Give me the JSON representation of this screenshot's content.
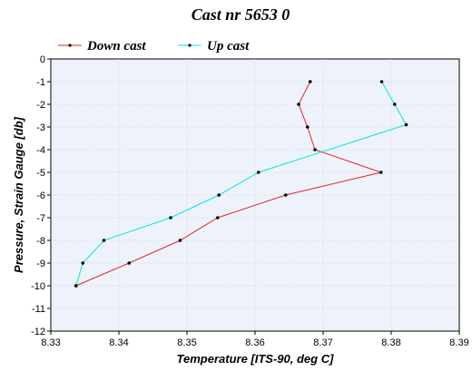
{
  "chart_data": {
    "type": "line",
    "title": "Cast nr 5653 0",
    "xlabel": "Temperature [ITS-90, deg C]",
    "ylabel": "Pressure, Strain Gauge [db]",
    "xlim": [
      8.33,
      8.39
    ],
    "ylim": [
      -12,
      0
    ],
    "x_ticks": [
      "8.33",
      "8.34",
      "8.35",
      "8.36",
      "8.37",
      "8.38",
      "8.39"
    ],
    "y_ticks": [
      "0",
      "-1",
      "-2",
      "-3",
      "-4",
      "-5",
      "-6",
      "-7",
      "-8",
      "-9",
      "-10",
      "-11",
      "-12"
    ],
    "grid": true,
    "legend_position": "top-left",
    "series": [
      {
        "name": "Down cast",
        "color": "#e8202a",
        "points": [
          {
            "x": 8.3681,
            "y": -1
          },
          {
            "x": 8.3664,
            "y": -2
          },
          {
            "x": 8.3677,
            "y": -3
          },
          {
            "x": 8.3688,
            "y": -4
          },
          {
            "x": 8.3785,
            "y": -5
          },
          {
            "x": 8.3645,
            "y": -6
          },
          {
            "x": 8.3545,
            "y": -7
          },
          {
            "x": 8.349,
            "y": -8
          },
          {
            "x": 8.3415,
            "y": -9
          },
          {
            "x": 8.3337,
            "y": -10
          }
        ]
      },
      {
        "name": "Up cast",
        "color": "#00e5e5",
        "points": [
          {
            "x": 8.3786,
            "y": -1
          },
          {
            "x": 8.3805,
            "y": -2
          },
          {
            "x": 8.3822,
            "y": -2.9
          },
          {
            "x": 8.3605,
            "y": -5
          },
          {
            "x": 8.3547,
            "y": -6
          },
          {
            "x": 8.3476,
            "y": -7
          },
          {
            "x": 8.3378,
            "y": -8
          },
          {
            "x": 8.3347,
            "y": -9
          },
          {
            "x": 8.3337,
            "y": -10
          }
        ]
      }
    ]
  }
}
